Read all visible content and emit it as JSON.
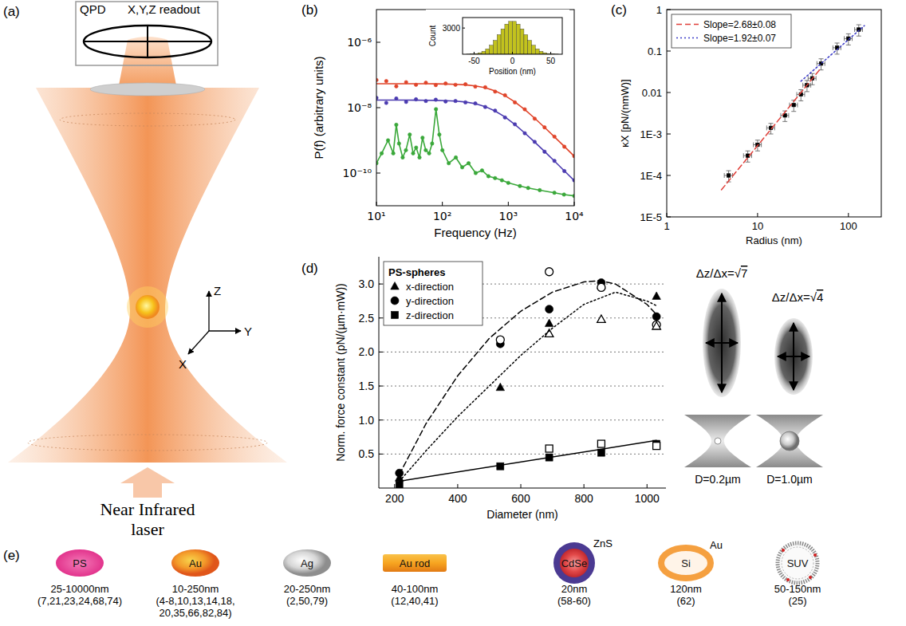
{
  "panel_labels": [
    "(a)",
    "(b)",
    "(c)",
    "(d)",
    "(e)"
  ],
  "diagram_a": {
    "detector": "QPD",
    "readout": "X,Y,Z readout",
    "axes": [
      "X",
      "Y",
      "Z"
    ],
    "source": [
      "Near Infrared",
      "laser"
    ]
  },
  "chart_data": [
    {
      "type": "line",
      "x_label": "Frequency (Hz)",
      "y_label": "P(f) (arbitrary units)",
      "log": true,
      "xlim": [
        10,
        10000
      ],
      "ylim": [
        1e-11,
        1e-05
      ],
      "xticks": [
        {
          "value": 10,
          "label": "10¹"
        },
        {
          "value": 100,
          "label": "10²"
        },
        {
          "value": 1000,
          "label": "10³"
        },
        {
          "value": 10000,
          "label": "10⁴"
        }
      ],
      "yticks": [
        {
          "value": 1e-10,
          "label": "10⁻¹⁰"
        },
        {
          "value": 1e-08,
          "label": "10⁻⁸"
        },
        {
          "value": 1e-06,
          "label": "10⁻⁶"
        }
      ],
      "series": [
        {
          "type": "scatter",
          "marker": "circle",
          "color": "#e0442a",
          "x": [
            10,
            14.1,
            20,
            28.2,
            39.8,
            56.2,
            79.4,
            112,
            158,
            224,
            316,
            447,
            631,
            891,
            1259,
            1778,
            2512,
            3548,
            5012,
            7079,
            10000
          ],
          "values": [
            7e-08,
            6.5e-08,
            4.5e-08,
            6e-08,
            5e-08,
            5.8e-08,
            4.9e-08,
            5.5e-08,
            5e-08,
            5.2e-08,
            4.4e-08,
            4.2e-08,
            3.1e-08,
            2.4e-08,
            1.45e-08,
            8.9e-09,
            4.6e-09,
            2.5e-09,
            1.3e-09,
            6.4e-10,
            3.3e-10
          ]
        },
        {
          "type": "line",
          "line_style": "solid",
          "color": "#e0442a",
          "x": [
            10,
            14.1,
            20,
            28.2,
            39.8,
            56.2,
            79.4,
            112,
            158,
            224,
            316,
            447,
            631,
            891,
            1259,
            1778,
            2512,
            3548,
            5012,
            7079,
            10000
          ],
          "values": [
            5.4e-08,
            5.4e-08,
            5.4e-08,
            5.39e-08,
            5.39e-08,
            5.37e-08,
            5.34e-08,
            5.29e-08,
            5.19e-08,
            4.99e-08,
            4.64e-08,
            4.07e-08,
            3.26e-08,
            2.34e-08,
            1.5e-08,
            8.7e-09,
            4.75e-09,
            2.49e-09,
            1.28e-09,
            6.5e-10,
            3.27e-10
          ]
        },
        {
          "type": "scatter",
          "marker": "circle",
          "color": "#4b3bb0",
          "x": [
            10,
            14.1,
            20,
            28.2,
            39.8,
            56.2,
            79.4,
            112,
            158,
            224,
            316,
            447,
            631,
            891,
            1259,
            1778,
            2512,
            3548,
            5012,
            7079,
            10000
          ],
          "values": [
            2e-08,
            1.4e-08,
            1.9e-08,
            1.5e-08,
            1.8e-08,
            1.6e-08,
            1.75e-08,
            1.55e-08,
            1.6e-08,
            1.45e-08,
            1.35e-08,
            1.05e-08,
            8.1e-09,
            5e-09,
            3.1e-09,
            1.65e-09,
            9e-10,
            4.5e-10,
            2.35e-10,
            1.15e-10,
            6e-11
          ]
        },
        {
          "type": "line",
          "line_style": "solid",
          "color": "#4b3bb0",
          "x": [
            10,
            14.1,
            20,
            28.2,
            39.8,
            56.2,
            79.4,
            112,
            158,
            224,
            316,
            447,
            631,
            891,
            1259,
            1778,
            2512,
            3548,
            5012,
            7079,
            10000
          ],
          "values": [
            1.7e-08,
            1.7e-08,
            1.7e-08,
            1.7e-08,
            1.69e-08,
            1.68e-08,
            1.67e-08,
            1.64e-08,
            1.59e-08,
            1.49e-08,
            1.32e-08,
            1.08e-08,
            7.9e-09,
            5.2e-09,
            3.06e-09,
            1.68e-09,
            8.9e-10,
            4.57e-10,
            2.32e-10,
            1.17e-10,
            5.9e-11
          ]
        },
        {
          "type": "line",
          "marker": "circle",
          "line_style": "solid",
          "color": "#3aa83a",
          "x": [
            10,
            12,
            15,
            18,
            20,
            22,
            25,
            28,
            32,
            36,
            40,
            45,
            50,
            56,
            63,
            70,
            80,
            90,
            100,
            125,
            160,
            200,
            250,
            320,
            400,
            500,
            630,
            800,
            1000,
            1500,
            2000,
            3000,
            5000,
            7000,
            10000
          ],
          "values": [
            2e-10,
            4e-10,
            1e-09,
            4e-10,
            3e-09,
            8e-10,
            3e-10,
            5e-10,
            1.5e-09,
            4e-10,
            6e-10,
            3e-10,
            1.2e-09,
            5e-10,
            4e-10,
            8e-10,
            9e-09,
            1.5e-09,
            5e-10,
            2e-10,
            3e-10,
            1.5e-10,
            2e-10,
            1e-10,
            1.2e-10,
            8e-11,
            7e-11,
            6e-11,
            5e-11,
            4e-11,
            3.5e-11,
            3e-11,
            2.5e-11,
            2.2e-11,
            2e-11
          ]
        }
      ]
    },
    {
      "type": "histogram",
      "x_label": "Position (nm)",
      "y_label": "Count",
      "color": "#c2c21e",
      "bins": [
        -60,
        -55,
        -50,
        -45,
        -40,
        -35,
        -30,
        -25,
        -20,
        -15,
        -10,
        -5,
        0,
        5,
        10,
        15,
        20,
        25,
        30,
        35,
        40,
        45,
        50,
        55,
        60
      ],
      "values": [
        12,
        32,
        77,
        167,
        334,
        610,
        1027,
        1583,
        2238,
        2900,
        3446,
        3759,
        3759,
        3446,
        2900,
        2238,
        1583,
        1027,
        610,
        334,
        167,
        77,
        32,
        12
      ],
      "xlim": [
        -65,
        65
      ],
      "ylim": [
        0,
        4200
      ],
      "xticks": [
        -50,
        0,
        50
      ],
      "yticks": [
        3000
      ]
    },
    {
      "type": "scatter",
      "x_label": "Radius (nm)",
      "y_label": "κX [pN/(nmW)]",
      "log": true,
      "legend": "upper left",
      "xlim": [
        1,
        230
      ],
      "ylim": [
        1e-05,
        1
      ],
      "xticks": [
        1,
        10,
        100
      ],
      "yticks": [
        {
          "value": 1e-05,
          "label": "1E-5"
        },
        {
          "value": 0.0001,
          "label": "1E-4"
        },
        {
          "value": 0.001,
          "label": "1E-3"
        },
        0.01,
        0.1,
        1
      ],
      "series": [
        {
          "type": "scatter",
          "marker": "square",
          "color": "#000000",
          "x": [
            4.8,
            7.8,
            10,
            14,
            20,
            25,
            30,
            35,
            40,
            50,
            75,
            100,
            130
          ],
          "values": [
            0.0001,
            0.0003,
            0.00055,
            0.0014,
            0.0028,
            0.005,
            0.009,
            0.015,
            0.022,
            0.05,
            0.12,
            0.2,
            0.33
          ],
          "errors": [
            3e-05,
            9e-05,
            0.00016,
            0.0004,
            0.0008,
            0.0015,
            0.0027,
            0.0045,
            0.0066,
            0.015,
            0.036,
            0.06,
            0.1
          ],
          "x_errors": [
            0.5,
            0.8,
            1,
            1.4,
            2,
            2.5,
            3,
            3.5,
            4,
            5,
            7.5,
            10,
            13
          ]
        },
        {
          "name": "Slope=2.68±0.08",
          "type": "line",
          "line_style": "dashed",
          "color": "#e0403a",
          "x": [
            4,
            50
          ],
          "values": [
            4.5e-05,
            0.039
          ]
        },
        {
          "name": "Slope=1.92±0.07",
          "type": "line",
          "line_style": "dotted",
          "color": "#3c3cc8",
          "x": [
            30,
            150
          ],
          "values": [
            0.0187,
            0.41
          ]
        }
      ]
    },
    {
      "type": "scatter",
      "x_label": "Diameter (nm)",
      "y_label": "Norm. force constant (pN/(µm·mW))",
      "grid": true,
      "legend": "upper left",
      "legend_title": "PS-spheres",
      "xlim": [
        150,
        1060
      ],
      "ylim": [
        0,
        3.4
      ],
      "xticks": [
        200,
        400,
        600,
        800,
        1000
      ],
      "yticks": [
        0.5,
        {
          "value": 1,
          "label": "1.0"
        },
        1.5,
        {
          "value": 2,
          "label": "2.0"
        },
        2.5,
        {
          "value": 3,
          "label": "3.0"
        }
      ],
      "series": [
        {
          "name": "x-direction",
          "type": "scatter",
          "marker": "triangle",
          "color": "#000000",
          "x": [
            215,
            535,
            690,
            855,
            1030
          ],
          "values": [
            0.15,
            1.48,
            2.42,
            2.98,
            2.82
          ]
        },
        {
          "name": "y-direction",
          "type": "scatter",
          "marker": "circle",
          "color": "#000000",
          "x": [
            215,
            535,
            690,
            855,
            1030
          ],
          "values": [
            0.22,
            2.12,
            2.63,
            3.02,
            2.52
          ]
        },
        {
          "name": "z-direction",
          "type": "scatter",
          "marker": "square",
          "color": "#000000",
          "x": [
            215,
            535,
            690,
            855,
            1030
          ],
          "values": [
            0.05,
            0.32,
            0.45,
            0.52,
            0.65
          ]
        },
        {
          "type": "scatter",
          "marker": "open-circle",
          "color": "#000000",
          "x": [
            535,
            690,
            855,
            1030
          ],
          "values": [
            2.18,
            3.18,
            2.95,
            2.4
          ]
        },
        {
          "type": "scatter",
          "marker": "open-triangle",
          "color": "#000000",
          "x": [
            690,
            855,
            1030
          ],
          "values": [
            2.27,
            2.48,
            2.38
          ]
        },
        {
          "type": "scatter",
          "marker": "open-square",
          "color": "#000000",
          "x": [
            690,
            855,
            1030
          ],
          "values": [
            0.58,
            0.65,
            0.62
          ]
        },
        {
          "type": "line",
          "line_style": "dotted",
          "color": "#000000",
          "x": [
            215,
            300,
            400,
            500,
            600,
            700,
            800,
            900,
            1000,
            1030
          ],
          "values": [
            0.1,
            0.55,
            1.05,
            1.5,
            1.95,
            2.35,
            2.7,
            2.88,
            2.75,
            2.68
          ]
        },
        {
          "type": "line",
          "line_style": "dashed",
          "color": "#000000",
          "x": [
            215,
            300,
            400,
            500,
            600,
            700,
            800,
            850,
            900,
            1000,
            1030
          ],
          "values": [
            0.2,
            0.95,
            1.65,
            2.2,
            2.6,
            2.88,
            3.03,
            3.05,
            3.0,
            2.7,
            2.55
          ]
        },
        {
          "type": "line",
          "line_style": "solid",
          "color": "#000000",
          "x": [
            215,
            1030
          ],
          "values": [
            0.1,
            0.7
          ]
        }
      ]
    }
  ],
  "diagram_d": {
    "clouds": [
      {
        "ratio_label": "Δz/Δx=√7",
        "size_label": "D=0.2µm"
      },
      {
        "ratio_label": "Δz/Δx=√4",
        "size_label": "D=1.0µm"
      }
    ]
  },
  "particles": [
    {
      "label": "PS",
      "size": "25-10000nm",
      "refs": [
        "(7,21,23,24,68,74)"
      ]
    },
    {
      "label": "Au",
      "size": "10-250nm",
      "refs": [
        "(4-8,10,13,14,18,",
        "20,35,66,82,84)"
      ]
    },
    {
      "label": "Ag",
      "size": "20-250nm",
      "refs": [
        "(2,50,79)"
      ]
    },
    {
      "label": "Au rod",
      "size": "40-100nm",
      "refs": [
        "(12,40,41)"
      ]
    },
    {
      "label": "CdSe",
      "shell": "ZnS",
      "size": "20nm",
      "refs": [
        "(58-60)"
      ]
    },
    {
      "label": "Si",
      "shell": "Au",
      "size": "120nm",
      "refs": [
        "(62)"
      ]
    },
    {
      "label": "SUV",
      "size": "50-150nm",
      "refs": [
        "(25)"
      ]
    }
  ]
}
